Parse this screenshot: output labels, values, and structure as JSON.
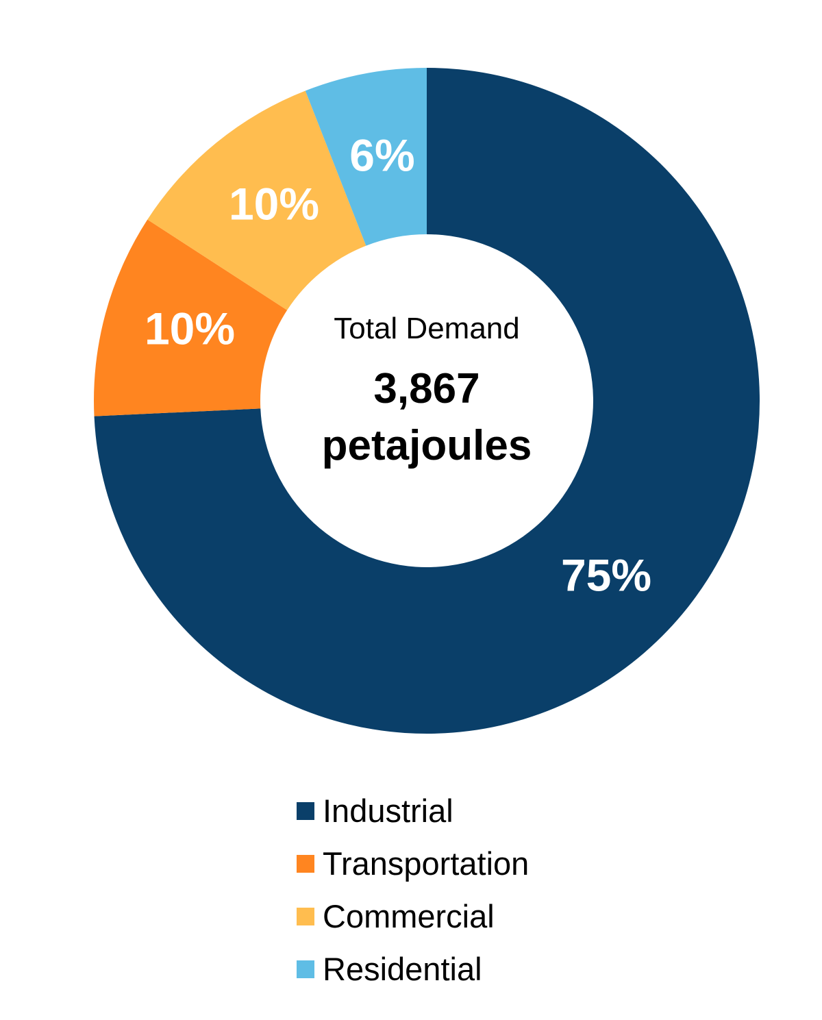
{
  "chart_data": {
    "type": "pie",
    "subtype": "donut",
    "title": "",
    "center_label": "Total Demand",
    "center_value": "3,867",
    "center_unit": "petajoules",
    "categories": [
      "Industrial",
      "Transportation",
      "Commercial",
      "Residential"
    ],
    "values": [
      75,
      10,
      10,
      6
    ],
    "value_labels": [
      "75%",
      "10%",
      "10%",
      "6%"
    ],
    "colors": [
      "#0A3F69",
      "#FF8520",
      "#FFBD4F",
      "#5FBDE5"
    ],
    "legend_position": "bottom"
  },
  "center": {
    "label": "Total Demand",
    "value": "3,867",
    "unit": "petajoules"
  },
  "legend": [
    {
      "label": "Industrial",
      "color": "#0A3F69"
    },
    {
      "label": "Transportation",
      "color": "#FF8520"
    },
    {
      "label": "Commercial",
      "color": "#FFBD4F"
    },
    {
      "label": "Residential",
      "color": "#5FBDE5"
    }
  ]
}
